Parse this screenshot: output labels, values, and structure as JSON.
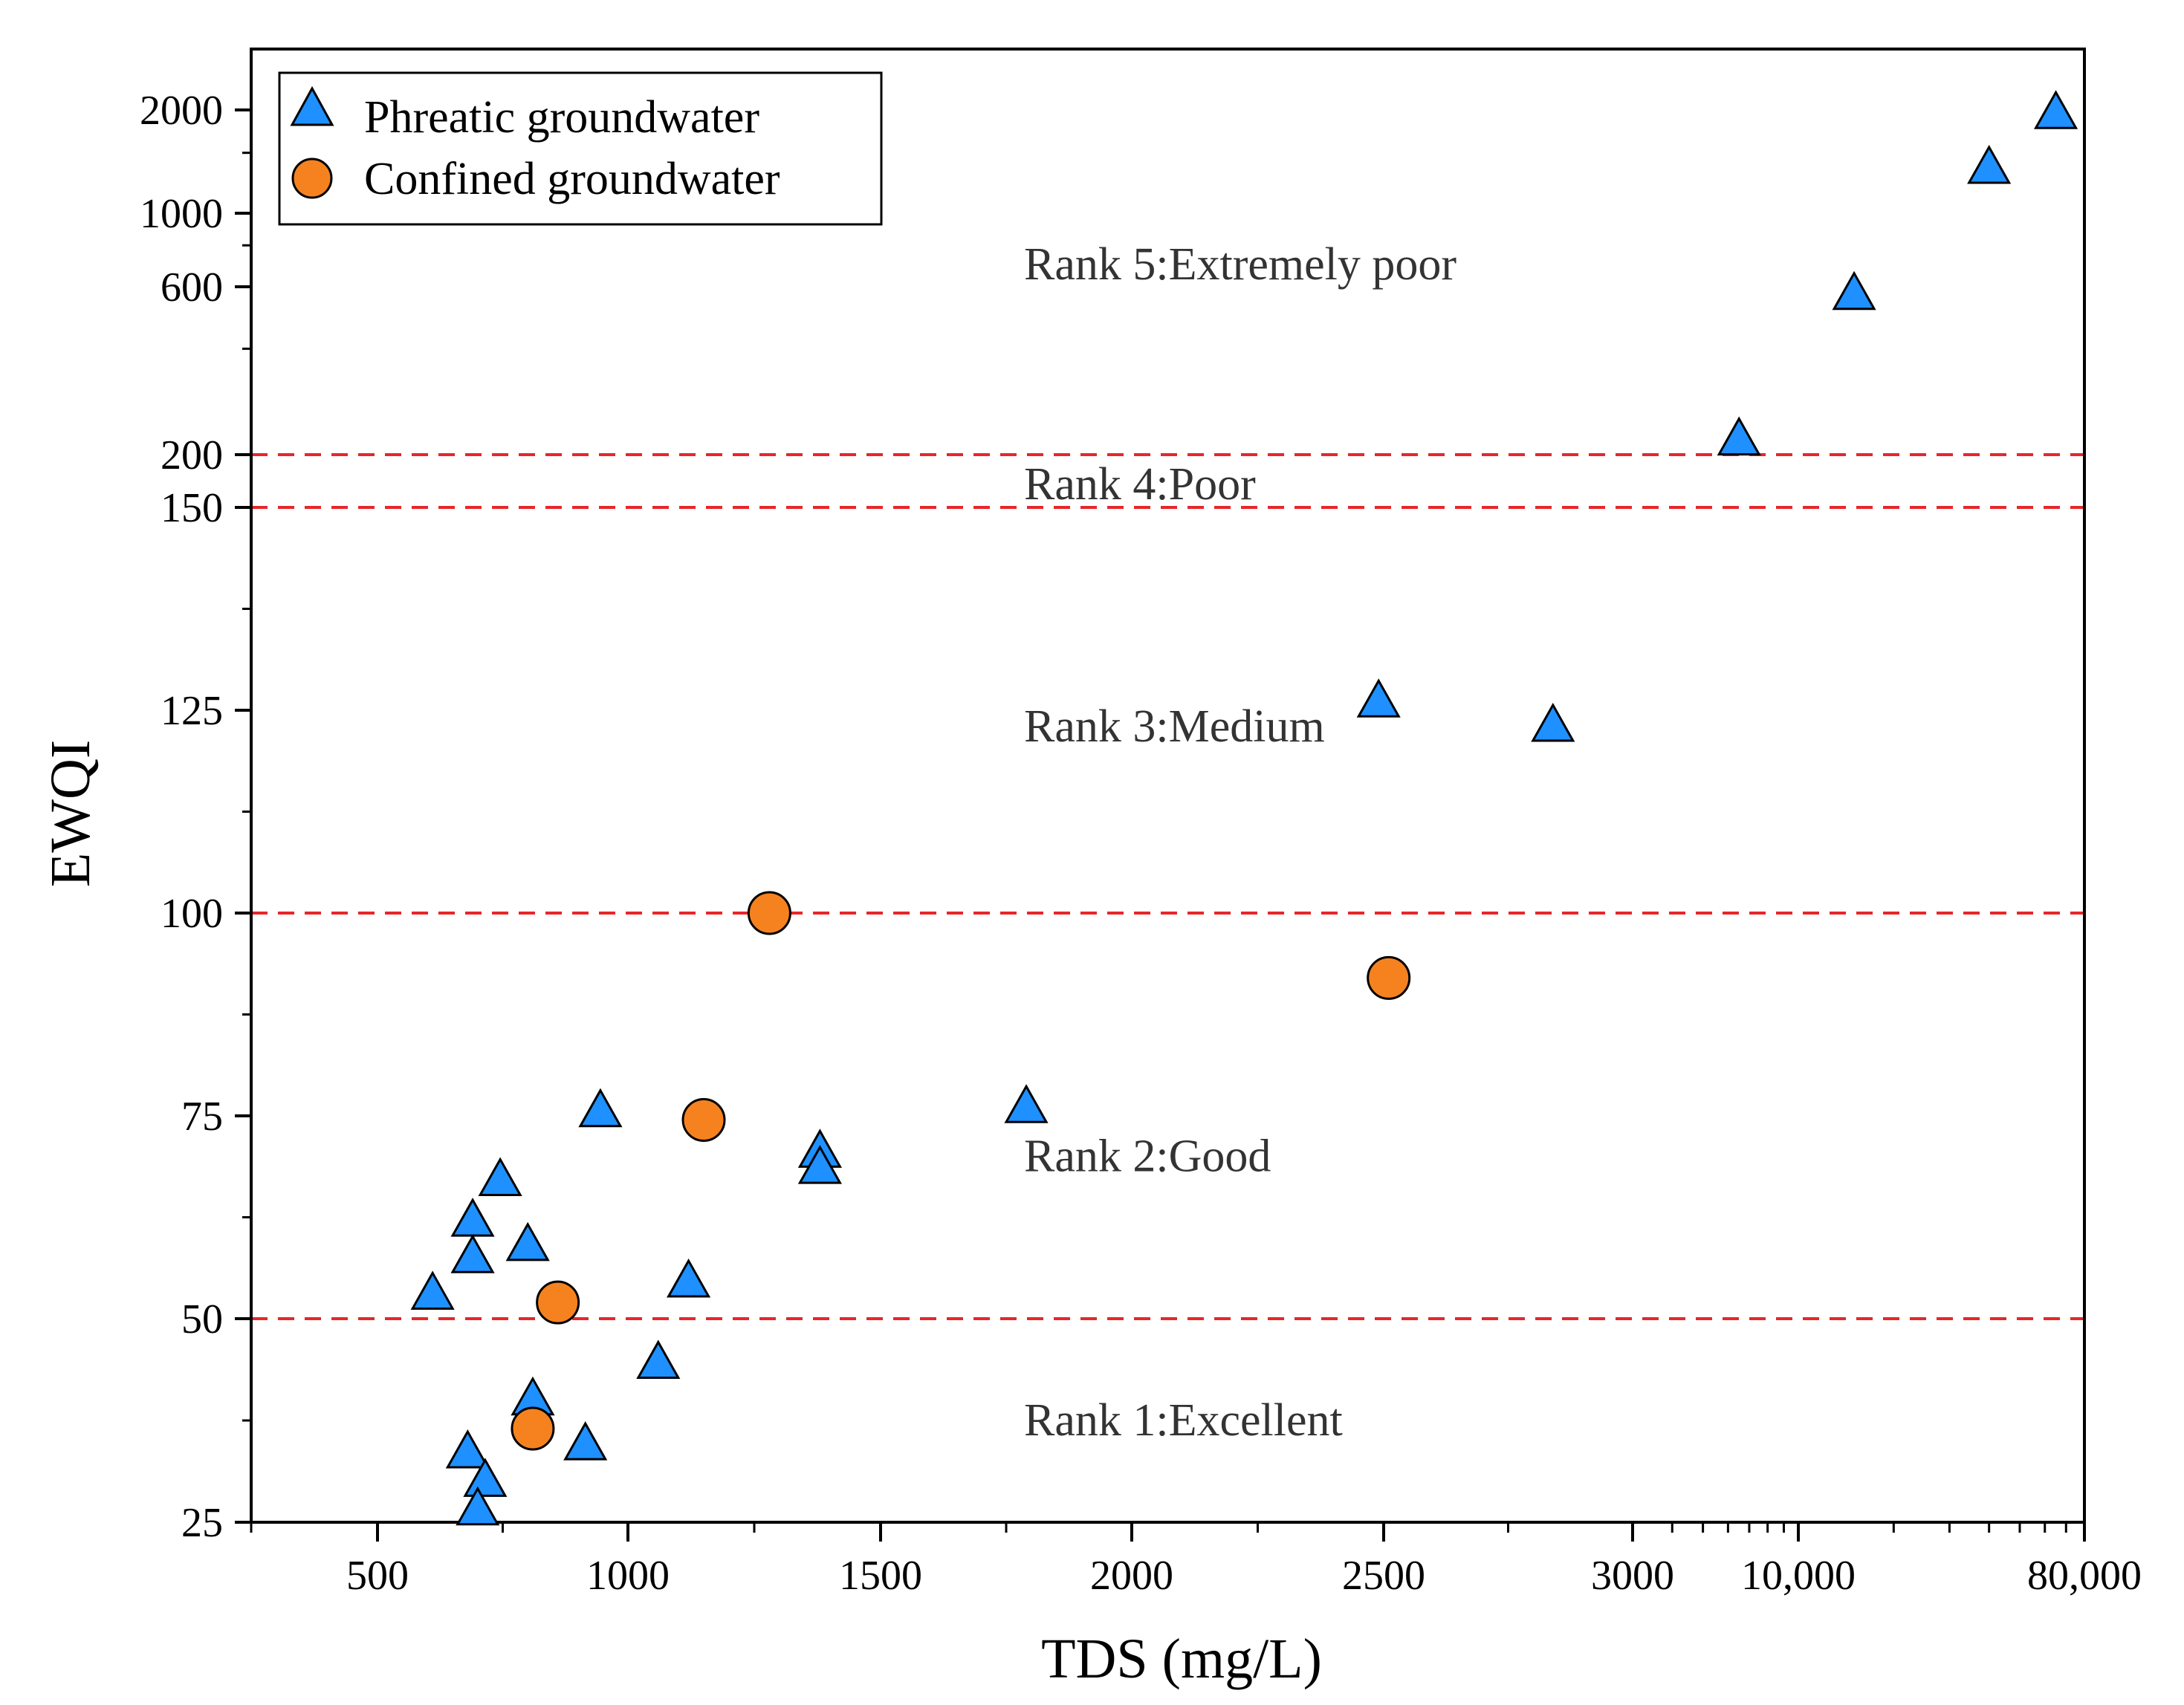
{
  "chart_data": {
    "type": "scatter",
    "xlabel": "TDS (mg/L)",
    "ylabel": "EWQI",
    "x_scale": "piecewise (linear 250-3000, log-compressed 3000-80,000)",
    "y_scale": "piecewise (linear 25-150, log-compressed 150-2000+)",
    "x_ticks": [
      {
        "value": 500,
        "label": "500"
      },
      {
        "value": 1000,
        "label": "1000"
      },
      {
        "value": 1500,
        "label": "1500"
      },
      {
        "value": 2000,
        "label": "2000"
      },
      {
        "value": 2500,
        "label": "2500"
      },
      {
        "value": 3000,
        "label": "3000"
      },
      {
        "value": 10000,
        "label": "10,000"
      },
      {
        "value": 80000,
        "label": "80,000"
      }
    ],
    "y_ticks": [
      {
        "value": 25,
        "label": "25"
      },
      {
        "value": 50,
        "label": "50"
      },
      {
        "value": 75,
        "label": "75"
      },
      {
        "value": 100,
        "label": "100"
      },
      {
        "value": 125,
        "label": "125"
      },
      {
        "value": 150,
        "label": "150"
      },
      {
        "value": 200,
        "label": "200"
      },
      {
        "value": 600,
        "label": "600"
      },
      {
        "value": 1000,
        "label": "1000"
      },
      {
        "value": 2000,
        "label": "2000"
      }
    ],
    "threshold_lines": [
      50,
      100,
      150,
      200
    ],
    "rank_labels": [
      {
        "text": "Rank 5:Extremely poor",
        "y": 700
      },
      {
        "text": "Rank 4:Poor",
        "y": 170
      },
      {
        "text": "Rank 3:Medium",
        "y": 123
      },
      {
        "text": "Rank 2:Good",
        "y": 70
      },
      {
        "text": "Rank 1:Excellent",
        "y": 37.5
      }
    ],
    "series": [
      {
        "name": "Phreatic groundwater",
        "marker": "triangle",
        "color": "#1e90ff",
        "points": [
          {
            "x": 610,
            "y": 53
          },
          {
            "x": 690,
            "y": 62
          },
          {
            "x": 690,
            "y": 57.5
          },
          {
            "x": 745,
            "y": 67
          },
          {
            "x": 800,
            "y": 59
          },
          {
            "x": 945,
            "y": 75.5
          },
          {
            "x": 1120,
            "y": 54.5
          },
          {
            "x": 1380,
            "y": 70.5
          },
          {
            "x": 1380,
            "y": 68.5
          },
          {
            "x": 1790,
            "y": 76
          },
          {
            "x": 1060,
            "y": 44.5
          },
          {
            "x": 810,
            "y": 40
          },
          {
            "x": 915,
            "y": 34.5
          },
          {
            "x": 680,
            "y": 33.5
          },
          {
            "x": 715,
            "y": 30
          },
          {
            "x": 700,
            "y": 26.5
          },
          {
            "x": 2490,
            "y": 126
          },
          {
            "x": 2840,
            "y": 123
          },
          {
            "x": 6500,
            "y": 220
          },
          {
            "x": 15000,
            "y": 570
          },
          {
            "x": 40000,
            "y": 1350
          },
          {
            "x": 65000,
            "y": 1950
          }
        ]
      },
      {
        "name": "Confined groundwater",
        "marker": "circle",
        "color": "#f5821f",
        "points": [
          {
            "x": 1280,
            "y": 100
          },
          {
            "x": 2510,
            "y": 92
          },
          {
            "x": 1150,
            "y": 74.5
          },
          {
            "x": 860,
            "y": 52
          },
          {
            "x": 810,
            "y": 36.5
          }
        ]
      }
    ]
  }
}
